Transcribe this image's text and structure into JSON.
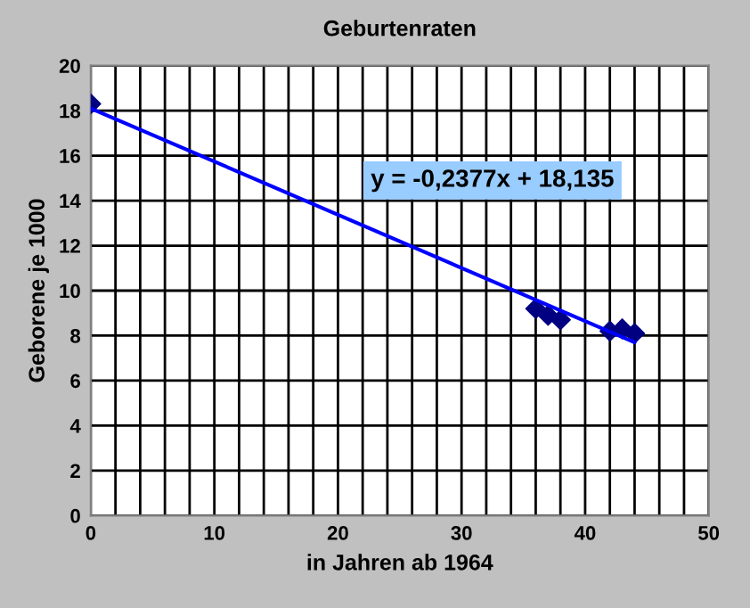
{
  "chart_data": {
    "type": "scatter",
    "title": "Geburtenraten",
    "xlabel": "in Jahren ab 1964",
    "ylabel": "Geborene je 1000",
    "series": [
      {
        "color": "#000080",
        "marker": "diamond",
        "x": [
          0,
          36,
          37,
          38,
          42,
          43,
          44
        ],
        "values": [
          18.3,
          9.2,
          8.9,
          8.7,
          8.2,
          8.3,
          8.1
        ]
      },
      {
        "type": "line",
        "color": "#0000ff",
        "marker": "none",
        "x": [
          0,
          44
        ],
        "values": [
          18.1,
          7.7
        ]
      }
    ],
    "annotations": [
      "y = -0,2377x + 18,135"
    ],
    "xlim": [
      0,
      50
    ],
    "ylim": [
      0,
      20
    ],
    "xticks": [
      0,
      {
        "value": 2,
        "label": null
      },
      {
        "value": 4,
        "label": null
      },
      {
        "value": 6,
        "label": null
      },
      {
        "value": 8,
        "label": null
      },
      10,
      {
        "value": 12,
        "label": null
      },
      {
        "value": 14,
        "label": null
      },
      {
        "value": 16,
        "label": null
      },
      {
        "value": 18,
        "label": null
      },
      20,
      {
        "value": 22,
        "label": null
      },
      {
        "value": 24,
        "label": null
      },
      {
        "value": 26,
        "label": null
      },
      {
        "value": 28,
        "label": null
      },
      30,
      {
        "value": 32,
        "label": null
      },
      {
        "value": 34,
        "label": null
      },
      {
        "value": 36,
        "label": null
      },
      {
        "value": 38,
        "label": null
      },
      40,
      {
        "value": 42,
        "label": null
      },
      {
        "value": 44,
        "label": null
      },
      {
        "value": 46,
        "label": null
      },
      {
        "value": 48,
        "label": null
      },
      50
    ],
    "yticks": [
      0,
      2,
      4,
      6,
      8,
      10,
      12,
      14,
      16,
      18,
      20
    ],
    "grid": true,
    "legend": false
  }
}
